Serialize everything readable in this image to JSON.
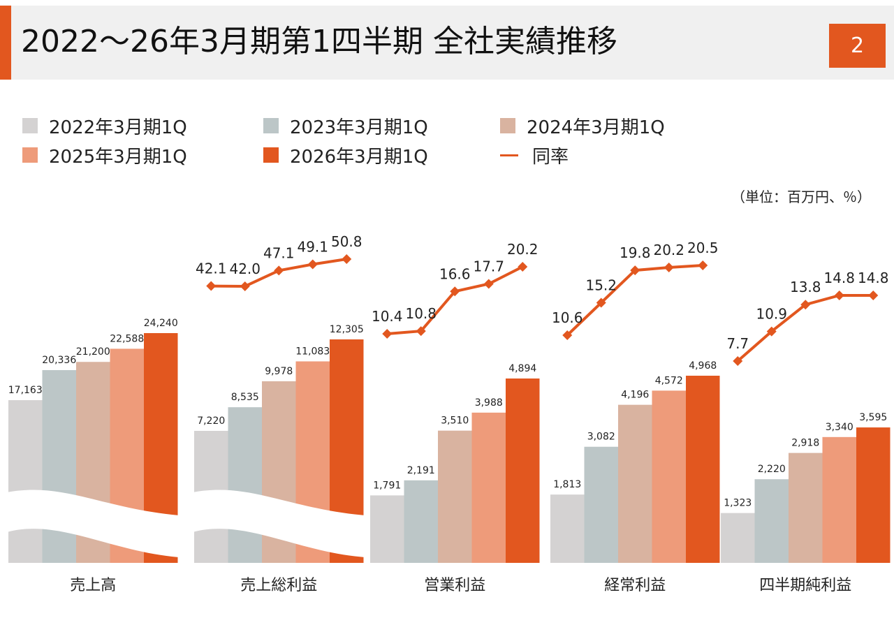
{
  "header": {
    "title": "2022～26年3月期第1四半期 全社実績推移",
    "page_number": "2"
  },
  "unit_note": "（単位：百万円、％）",
  "colors": {
    "accent": "#e2571f",
    "series": [
      "#d4d2d2",
      "#bcc6c7",
      "#d9b3a0",
      "#ee9b7a",
      "#e2571f"
    ],
    "rate_line": "#e2571f",
    "header_bg": "#f0f0f0"
  },
  "legend": {
    "items": [
      {
        "label": "2022年3月期1Q",
        "kind": "box"
      },
      {
        "label": "2023年3月期1Q",
        "kind": "box"
      },
      {
        "label": "2024年3月期1Q",
        "kind": "box"
      },
      {
        "label": "2025年3月期1Q",
        "kind": "box"
      },
      {
        "label": "2026年3月期1Q",
        "kind": "box"
      },
      {
        "label": "同率",
        "kind": "line"
      }
    ]
  },
  "chart_data": {
    "type": "bar",
    "series_names": [
      "2022年3月期1Q",
      "2023年3月期1Q",
      "2024年3月期1Q",
      "2025年3月期1Q",
      "2026年3月期1Q"
    ],
    "rate_series_name": "同率",
    "groups": [
      {
        "category": "売上高",
        "values": [
          17163,
          20336,
          21200,
          22588,
          24240
        ],
        "labels": [
          "17,163",
          "20,336",
          "21,200",
          "22,588",
          "24,240"
        ],
        "axis_break": true,
        "rate": null
      },
      {
        "category": "売上総利益",
        "values": [
          7220,
          8535,
          9978,
          11083,
          12305
        ],
        "labels": [
          "7,220",
          "8,535",
          "9,978",
          "11,083",
          "12,305"
        ],
        "axis_break": true,
        "rate": [
          42.1,
          42.0,
          47.1,
          49.1,
          50.8
        ],
        "rate_labels": [
          "42.1",
          "42.0",
          "47.1",
          "49.1",
          "50.8"
        ]
      },
      {
        "category": "営業利益",
        "values": [
          1791,
          2191,
          3510,
          3988,
          4894
        ],
        "labels": [
          "1,791",
          "2,191",
          "3,510",
          "3,988",
          "4,894"
        ],
        "axis_break": false,
        "rate": [
          10.4,
          10.8,
          16.6,
          17.7,
          20.2
        ],
        "rate_labels": [
          "10.4",
          "10.8",
          "16.6",
          "17.7",
          "20.2"
        ]
      },
      {
        "category": "経常利益",
        "values": [
          1813,
          3082,
          4196,
          4572,
          4968
        ],
        "labels": [
          "1,813",
          "3,082",
          "4,196",
          "4,572",
          "4,968"
        ],
        "axis_break": false,
        "rate": [
          10.6,
          15.2,
          19.8,
          20.2,
          20.5
        ],
        "rate_labels": [
          "10.6",
          "15.2",
          "19.8",
          "20.2",
          "20.5"
        ]
      },
      {
        "category": "四半期純利益",
        "values": [
          1323,
          2220,
          2918,
          3340,
          3595
        ],
        "labels": [
          "1,323",
          "2,220",
          "2,918",
          "3,340",
          "3,595"
        ],
        "axis_break": false,
        "rate": [
          7.7,
          10.9,
          13.8,
          14.8,
          14.8
        ],
        "rate_labels": [
          "7.7",
          "10.9",
          "13.8",
          "14.8",
          "14.8"
        ]
      }
    ]
  }
}
